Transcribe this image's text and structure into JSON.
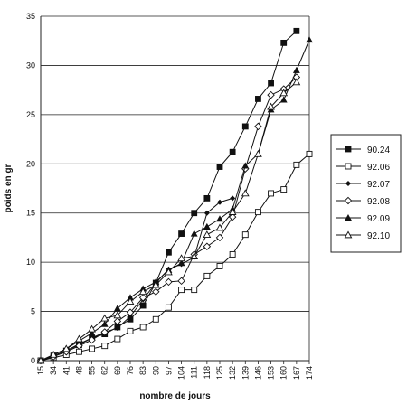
{
  "chart_data": {
    "type": "line",
    "title": "",
    "xlabel": "nombre de jours",
    "ylabel": "poids en gr",
    "categories": [
      "15",
      "34",
      "41",
      "48",
      "55",
      "62",
      "69",
      "76",
      "83",
      "90",
      "97",
      "104",
      "111",
      "118",
      "125",
      "132",
      "139",
      "146",
      "153",
      "160",
      "167",
      "174"
    ],
    "ylim": [
      0,
      35
    ],
    "yticks": [
      0,
      5,
      10,
      15,
      20,
      25,
      30,
      35
    ],
    "grid": "horizontal",
    "legend_position": "right",
    "series": [
      {
        "name": "90.24",
        "marker": "filled-square",
        "values": [
          0,
          0.5,
          1.0,
          1.6,
          2.3,
          2.7,
          3.4,
          4.2,
          5.6,
          7.9,
          11.0,
          12.9,
          15.0,
          16.5,
          19.7,
          21.2,
          23.8,
          26.6,
          28.2,
          32.3,
          33.5,
          null
        ]
      },
      {
        "name": "92.06",
        "marker": "open-square",
        "values": [
          0,
          0.3,
          0.6,
          0.9,
          1.2,
          1.5,
          2.2,
          3.0,
          3.4,
          4.2,
          5.4,
          7.2,
          7.2,
          8.6,
          9.6,
          10.8,
          12.8,
          15.1,
          17.0,
          17.4,
          19.9,
          21.0
        ]
      },
      {
        "name": "92.07",
        "marker": "small-diamond",
        "values": [
          0,
          0.5,
          1.0,
          1.7,
          2.3,
          2.9,
          3.3,
          4.5,
          6.2,
          7.9,
          9.3,
          9.8,
          10.5,
          15.0,
          16.1,
          16.5,
          null,
          null,
          null,
          null,
          null,
          null
        ]
      },
      {
        "name": "92.08",
        "marker": "open-diamond",
        "values": [
          0,
          0.4,
          0.9,
          1.5,
          2.1,
          2.9,
          4.0,
          4.9,
          6.4,
          7.0,
          8.0,
          8.1,
          10.8,
          11.6,
          12.5,
          14.6,
          19.5,
          23.8,
          27.0,
          27.6,
          28.8,
          null
        ]
      },
      {
        "name": "92.09",
        "marker": "filled-triangle",
        "values": [
          0,
          0.6,
          1.2,
          2.0,
          2.8,
          3.7,
          5.3,
          6.4,
          7.3,
          8.0,
          9.2,
          9.9,
          12.9,
          13.6,
          14.4,
          15.4,
          19.8,
          21.0,
          25.5,
          26.5,
          29.5,
          32.6
        ]
      },
      {
        "name": "92.10",
        "marker": "open-triangle",
        "values": [
          0,
          0.6,
          1.2,
          2.2,
          3.2,
          4.3,
          4.6,
          6.0,
          7.0,
          7.7,
          9.0,
          10.4,
          10.6,
          12.8,
          13.5,
          15.1,
          17.0,
          21.0,
          25.8,
          27.2,
          28.3,
          null
        ]
      }
    ]
  }
}
